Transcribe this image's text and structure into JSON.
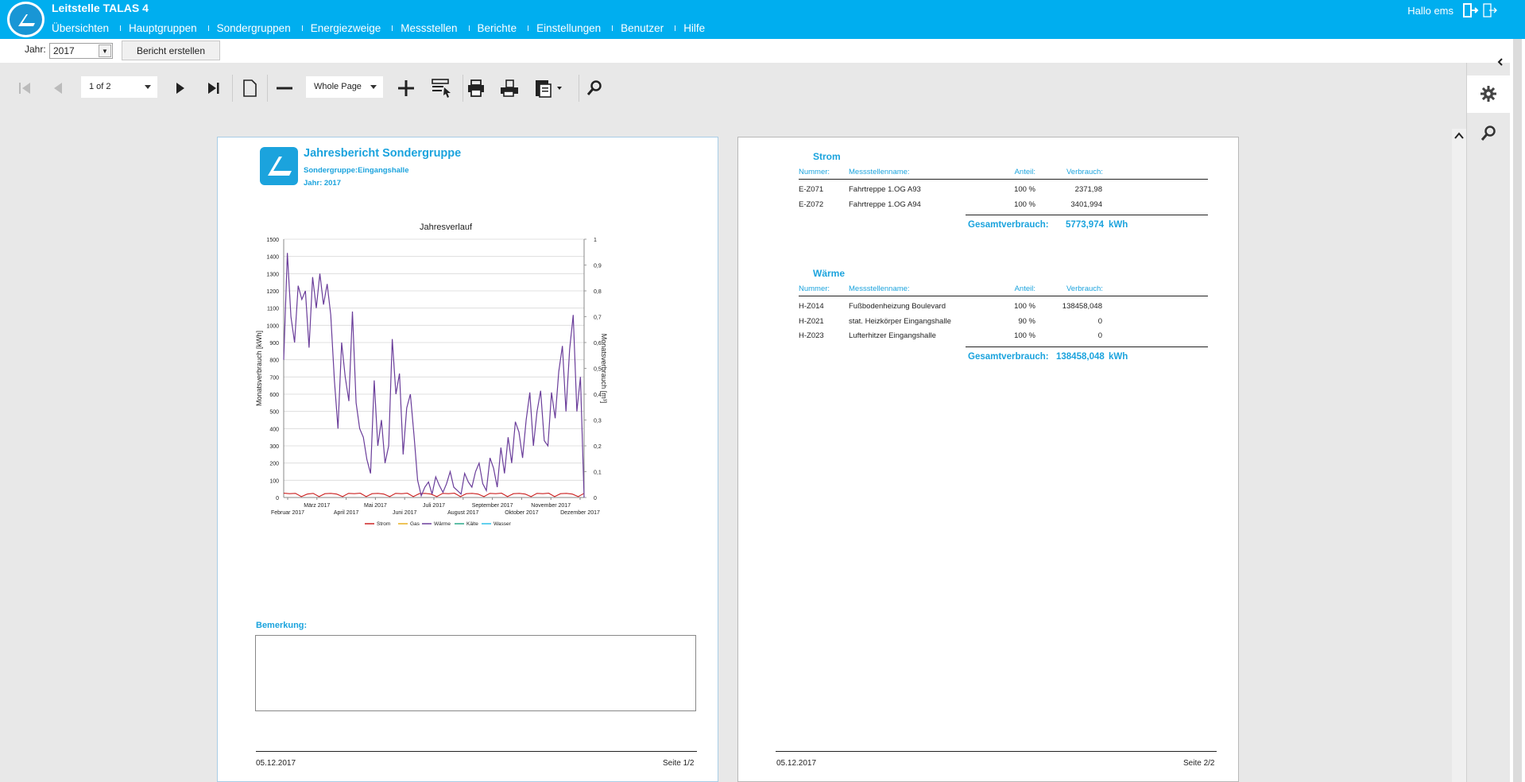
{
  "header": {
    "app_title": "Leitstelle TALAS 4",
    "nav": [
      "Übersichten",
      "Hauptgruppen",
      "Sondergruppen",
      "Energiezweige",
      "Messstellen",
      "Berichte",
      "Einstellungen",
      "Benutzer",
      "Hilfe"
    ],
    "greeting": "Hallo ems",
    "brand_color": "#00aeef"
  },
  "filter": {
    "year_label": "Jahr:",
    "year_value": "2017",
    "report_button": "Bericht erstellen"
  },
  "viewer": {
    "page_selector": "1 of 2",
    "zoom": "Whole Page"
  },
  "page1": {
    "title": "Jahresbericht Sondergruppe",
    "subtitle": "Sondergruppe:Eingangshalle",
    "year": "Jahr: 2017",
    "remark_label": "Bemerkung:",
    "footer_date": "05.12.2017",
    "footer_page": "Seite 1/2"
  },
  "page2": {
    "footer_date": "05.12.2017",
    "footer_page": "Seite 2/2",
    "sections": [
      {
        "title": "Strom",
        "headers": [
          "Nummer:",
          "Messstellenname:",
          "Anteil:",
          "Verbrauch:"
        ],
        "rows": [
          [
            "E-Z071",
            "Fahrtreppe 1.OG A93",
            "100 %",
            "2371,98"
          ],
          [
            "E-Z072",
            "Fahrtreppe 1.OG A94",
            "100 %",
            "3401,994"
          ]
        ],
        "total_label": "Gesamtverbrauch:",
        "total_value": "5773,974",
        "total_unit": "kWh"
      },
      {
        "title": "Wärme",
        "headers": [
          "Nummer:",
          "Messstellenname:",
          "Anteil:",
          "Verbrauch:"
        ],
        "rows": [
          [
            "H-Z014",
            "Fußbodenheizung Boulevard",
            "100 %",
            "138458,048"
          ],
          [
            "H-Z021",
            "stat. Heizkörper Eingangshalle",
            "90 %",
            "0"
          ],
          [
            "H-Z023",
            "Lufterhitzer Eingangshalle",
            "100 %",
            "0"
          ]
        ],
        "total_label": "Gesamtverbrauch:",
        "total_value": "138458,048",
        "total_unit": "kWh"
      }
    ]
  },
  "chart_data": {
    "type": "line",
    "title": "Jahresverlauf",
    "ylabel": "Monatsverbrauch [kWh]",
    "y2label": "Monatsverbrauch [m³]",
    "ylim": [
      0,
      1500
    ],
    "y2lim": [
      0,
      1
    ],
    "yticks": [
      0,
      100,
      200,
      300,
      400,
      500,
      600,
      700,
      800,
      900,
      1000,
      1100,
      1200,
      1300,
      1400,
      1500
    ],
    "y2ticks": [
      0,
      0.1,
      0.2,
      0.3,
      0.4,
      0.5,
      0.6,
      0.7,
      0.8,
      0.9,
      1
    ],
    "xticks_upper": [
      "März 2017",
      "Mai 2017",
      "Juli 2017",
      "September 2017",
      "November 2017"
    ],
    "xticks_lower": [
      "Februar 2017",
      "April 2017",
      "Juni 2017",
      "August 2017",
      "Oktober 2017",
      "Dezember 2017"
    ],
    "legend_position": "bottom",
    "series": [
      {
        "name": "Strom",
        "color": "#cc2222",
        "values": [
          25,
          22,
          24,
          5,
          20,
          24,
          5,
          22,
          24,
          20,
          5,
          24,
          22,
          25,
          5,
          22,
          24,
          20,
          5,
          24,
          22,
          25,
          5,
          22,
          24,
          20,
          5,
          24,
          22,
          25,
          5,
          22,
          24,
          20,
          5,
          24,
          22,
          25,
          5,
          22,
          24,
          20,
          5,
          24,
          22,
          25,
          5,
          22,
          24,
          20,
          5,
          24
        ]
      },
      {
        "name": "Gas",
        "color": "#e8b020",
        "values": []
      },
      {
        "name": "Wärme",
        "color": "#6a3d9a",
        "values": [
          800,
          1420,
          1050,
          900,
          1230,
          1150,
          1200,
          870,
          1280,
          1100,
          1300,
          1120,
          1240,
          1060,
          680,
          400,
          900,
          700,
          560,
          1080,
          550,
          400,
          350,
          220,
          140,
          680,
          300,
          450,
          200,
          300,
          920,
          600,
          720,
          250,
          520,
          600,
          360,
          100,
          10,
          60,
          90,
          20,
          120,
          70,
          30,
          80,
          150,
          60,
          40,
          20,
          140,
          90,
          60,
          150,
          200,
          80,
          40,
          230,
          170,
          60,
          290,
          140,
          350,
          200,
          440,
          380,
          230,
          450,
          610,
          300,
          500,
          620,
          330,
          300,
          610,
          460,
          730,
          880,
          500,
          860,
          1060,
          500,
          700,
          0
        ]
      },
      {
        "name": "Kälte",
        "color": "#2aa88a",
        "values": []
      },
      {
        "name": "Wasser",
        "color": "#2ec0e8",
        "values": []
      }
    ]
  }
}
